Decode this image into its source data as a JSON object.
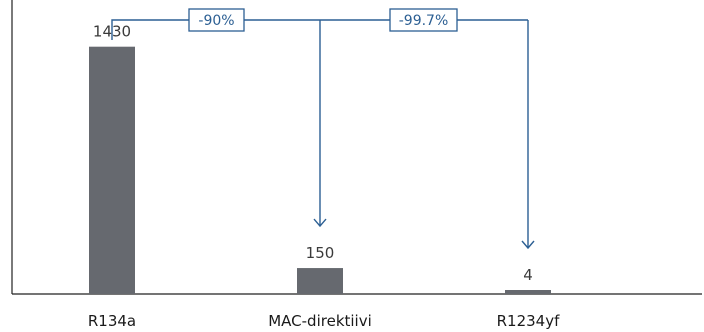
{
  "chart_data": {
    "type": "bar",
    "categories": [
      "R134a",
      "MAC-direktiivi",
      "R1234yf"
    ],
    "values": [
      1430,
      150,
      4
    ],
    "value_labels": [
      "1430",
      "150",
      "4"
    ],
    "title": "",
    "xlabel": "",
    "ylabel": "",
    "ylim": [
      0,
      1700
    ],
    "grid": false,
    "legend": "none",
    "colors": {
      "bar": "#66696f",
      "callout": "#2c5f93"
    },
    "annotations": [
      {
        "label": "-90%",
        "from_category": 0,
        "to_category": 1
      },
      {
        "label": "-99.7%",
        "from_category": 0,
        "to_category": 2
      }
    ]
  }
}
